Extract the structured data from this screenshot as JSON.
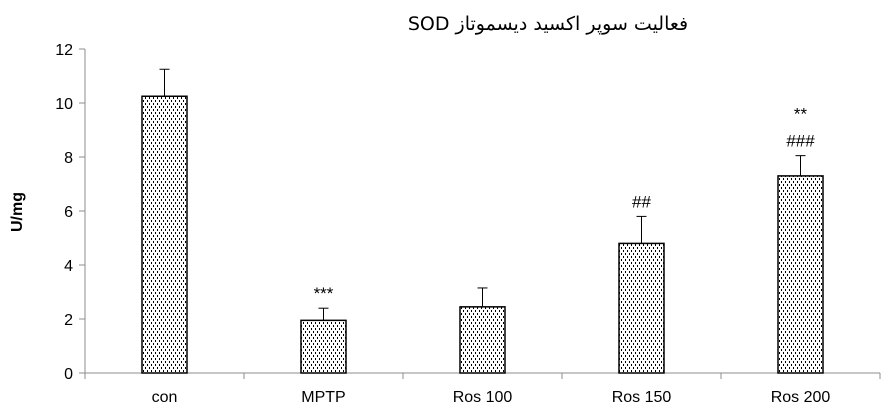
{
  "chart_data": {
    "type": "bar",
    "title": "فعالیت سوپر اکسید دیسموتاز  SOD",
    "xlabel": "",
    "ylabel": "U/mg",
    "ylim": [
      0,
      12
    ],
    "yticks": [
      0,
      2,
      4,
      6,
      8,
      10,
      12
    ],
    "grid": false,
    "legend": "none",
    "categories": [
      "con",
      "MPTP",
      "Ros 100",
      "Ros 150",
      "Ros 200"
    ],
    "values": [
      10.25,
      1.95,
      2.45,
      4.8,
      7.3
    ],
    "errors": [
      1.0,
      0.45,
      0.7,
      1.0,
      0.75
    ],
    "annotations": [
      {
        "category": "MPTP",
        "lines": [
          "***"
        ]
      },
      {
        "category": "Ros 150",
        "lines": [
          "##"
        ]
      },
      {
        "category": "Ros 200",
        "lines": [
          "**",
          "###"
        ]
      }
    ],
    "bar_fill": "dotted-pattern",
    "colors": {
      "bar_border": "#000000",
      "dot": "#000000",
      "axis": "#8c8c8c"
    }
  }
}
